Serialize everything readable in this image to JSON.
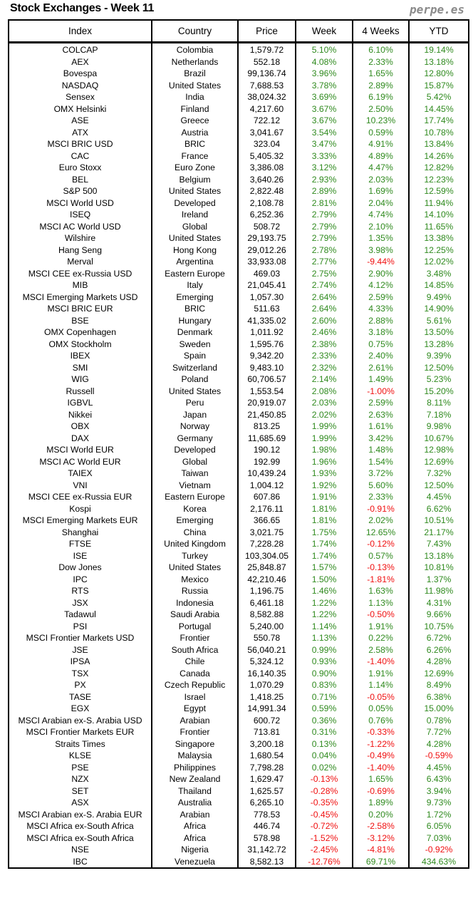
{
  "header": {
    "title": "Stock Exchanges - Week 11",
    "brand": "perpe.es"
  },
  "columns": [
    "Index",
    "Country",
    "Price",
    "Week",
    "4 Weeks",
    "YTD"
  ],
  "colors": {
    "positive": "#2f8a1e",
    "negative": "#f01010"
  },
  "rows": [
    [
      "COLCAP",
      "Colombia",
      "1,579.72",
      "5.10%",
      "6.10%",
      "19.14%"
    ],
    [
      "AEX",
      "Netherlands",
      "552.18",
      "4.08%",
      "2.33%",
      "13.18%"
    ],
    [
      "Bovespa",
      "Brazil",
      "99,136.74",
      "3.96%",
      "1.65%",
      "12.80%"
    ],
    [
      "NASDAQ",
      "United States",
      "7,688.53",
      "3.78%",
      "2.89%",
      "15.87%"
    ],
    [
      "Sensex",
      "India",
      "38,024.32",
      "3.69%",
      "6.19%",
      "5.42%"
    ],
    [
      "OMX Helsinki",
      "Finland",
      "4,217.60",
      "3.67%",
      "2.50%",
      "14.45%"
    ],
    [
      "ASE",
      "Greece",
      "722.12",
      "3.67%",
      "10.23%",
      "17.74%"
    ],
    [
      "ATX",
      "Austria",
      "3,041.67",
      "3.54%",
      "0.59%",
      "10.78%"
    ],
    [
      "MSCI BRIC USD",
      "BRIC",
      "323.04",
      "3.47%",
      "4.91%",
      "13.84%"
    ],
    [
      "CAC",
      "France",
      "5,405.32",
      "3.33%",
      "4.89%",
      "14.26%"
    ],
    [
      "Euro Stoxx",
      "Euro Zone",
      "3,386.08",
      "3.12%",
      "4.47%",
      "12.82%"
    ],
    [
      "BEL",
      "Belgium",
      "3,640.26",
      "2.93%",
      "2.03%",
      "12.23%"
    ],
    [
      "S&P 500",
      "United States",
      "2,822.48",
      "2.89%",
      "1.69%",
      "12.59%"
    ],
    [
      "MSCI World USD",
      "Developed",
      "2,108.78",
      "2.81%",
      "2.04%",
      "11.94%"
    ],
    [
      "ISEQ",
      "Ireland",
      "6,252.36",
      "2.79%",
      "4.74%",
      "14.10%"
    ],
    [
      "MSCI AC World USD",
      "Global",
      "508.72",
      "2.79%",
      "2.10%",
      "11.65%"
    ],
    [
      "Wilshire",
      "United States",
      "29,193.75",
      "2.79%",
      "1.35%",
      "13.38%"
    ],
    [
      "Hang Seng",
      "Hong Kong",
      "29,012.26",
      "2.78%",
      "3.98%",
      "12.25%"
    ],
    [
      "Merval",
      "Argentina",
      "33,933.08",
      "2.77%",
      "-9.44%",
      "12.02%"
    ],
    [
      "MSCI CEE ex-Russia USD",
      "Eastern Europe",
      "469.03",
      "2.75%",
      "2.90%",
      "3.48%"
    ],
    [
      "MIB",
      "Italy",
      "21,045.41",
      "2.74%",
      "4.12%",
      "14.85%"
    ],
    [
      "MSCI Emerging Markets USD",
      "Emerging",
      "1,057.30",
      "2.64%",
      "2.59%",
      "9.49%"
    ],
    [
      "MSCI BRIC EUR",
      "BRIC",
      "511.63",
      "2.64%",
      "4.33%",
      "14.90%"
    ],
    [
      "BSE",
      "Hungary",
      "41,335.02",
      "2.60%",
      "2.88%",
      "5.61%"
    ],
    [
      "OMX Copenhagen",
      "Denmark",
      "1,011.92",
      "2.46%",
      "3.18%",
      "13.50%"
    ],
    [
      "OMX Stockholm",
      "Sweden",
      "1,595.76",
      "2.38%",
      "0.75%",
      "13.28%"
    ],
    [
      "IBEX",
      "Spain",
      "9,342.20",
      "2.33%",
      "2.40%",
      "9.39%"
    ],
    [
      "SMI",
      "Switzerland",
      "9,483.10",
      "2.32%",
      "2.61%",
      "12.50%"
    ],
    [
      "WIG",
      "Poland",
      "60,706.57",
      "2.14%",
      "1.49%",
      "5.23%"
    ],
    [
      "Russell",
      "United States",
      "1,553.54",
      "2.08%",
      "-1.00%",
      "15.20%"
    ],
    [
      "IGBVL",
      "Peru",
      "20,919.07",
      "2.03%",
      "2.59%",
      "8.11%"
    ],
    [
      "Nikkei",
      "Japan",
      "21,450.85",
      "2.02%",
      "2.63%",
      "7.18%"
    ],
    [
      "OBX",
      "Norway",
      "813.25",
      "1.99%",
      "1.61%",
      "9.98%"
    ],
    [
      "DAX",
      "Germany",
      "11,685.69",
      "1.99%",
      "3.42%",
      "10.67%"
    ],
    [
      "MSCI World EUR",
      "Developed",
      "190.12",
      "1.98%",
      "1.48%",
      "12.98%"
    ],
    [
      "MSCI AC World EUR",
      "Global",
      "192.99",
      "1.96%",
      "1.54%",
      "12.69%"
    ],
    [
      "TAIEX",
      "Taiwan",
      "10,439.24",
      "1.93%",
      "3.72%",
      "7.32%"
    ],
    [
      "VNI",
      "Vietnam",
      "1,004.12",
      "1.92%",
      "5.60%",
      "12.50%"
    ],
    [
      "MSCI CEE ex-Russia EUR",
      "Eastern Europe",
      "607.86",
      "1.91%",
      "2.33%",
      "4.45%"
    ],
    [
      "Kospi",
      "Korea",
      "2,176.11",
      "1.81%",
      "-0.91%",
      "6.62%"
    ],
    [
      "MSCI Emerging Markets EUR",
      "Emerging",
      "366.65",
      "1.81%",
      "2.02%",
      "10.51%"
    ],
    [
      "Shanghai",
      "China",
      "3,021.75",
      "1.75%",
      "12.65%",
      "21.17%"
    ],
    [
      "FTSE",
      "United Kingdom",
      "7,228.28",
      "1.74%",
      "-0.12%",
      "7.43%"
    ],
    [
      "ISE",
      "Turkey",
      "103,304.05",
      "1.74%",
      "0.57%",
      "13.18%"
    ],
    [
      "Dow Jones",
      "United States",
      "25,848.87",
      "1.57%",
      "-0.13%",
      "10.81%"
    ],
    [
      "IPC",
      "Mexico",
      "42,210.46",
      "1.50%",
      "-1.81%",
      "1.37%"
    ],
    [
      "RTS",
      "Russia",
      "1,196.75",
      "1.46%",
      "1.63%",
      "11.98%"
    ],
    [
      "JSX",
      "Indonesia",
      "6,461.18",
      "1.22%",
      "1.13%",
      "4.31%"
    ],
    [
      "Tadawul",
      "Saudi Arabia",
      "8,582.88",
      "1.22%",
      "-0.50%",
      "9.66%"
    ],
    [
      "PSI",
      "Portugal",
      "5,240.00",
      "1.14%",
      "1.91%",
      "10.75%"
    ],
    [
      "MSCI Frontier Markets USD",
      "Frontier",
      "550.78",
      "1.13%",
      "0.22%",
      "6.72%"
    ],
    [
      "JSE",
      "South Africa",
      "56,040.21",
      "0.99%",
      "2.58%",
      "6.26%"
    ],
    [
      "IPSA",
      "Chile",
      "5,324.12",
      "0.93%",
      "-1.40%",
      "4.28%"
    ],
    [
      "TSX",
      "Canada",
      "16,140.35",
      "0.90%",
      "1.91%",
      "12.69%"
    ],
    [
      "PX",
      "Czech Republic",
      "1,070.29",
      "0.83%",
      "1.14%",
      "8.49%"
    ],
    [
      "TASE",
      "Israel",
      "1,418.25",
      "0.71%",
      "-0.05%",
      "6.38%"
    ],
    [
      "EGX",
      "Egypt",
      "14,991.34",
      "0.59%",
      "0.05%",
      "15.00%"
    ],
    [
      "MSCI Arabian ex-S. Arabia USD",
      "Arabian",
      "600.72",
      "0.36%",
      "0.76%",
      "0.78%"
    ],
    [
      "MSCI Frontier Markets EUR",
      "Frontier",
      "713.81",
      "0.31%",
      "-0.33%",
      "7.72%"
    ],
    [
      "Straits Times",
      "Singapore",
      "3,200.18",
      "0.13%",
      "-1.22%",
      "4.28%"
    ],
    [
      "KLSE",
      "Malaysia",
      "1,680.54",
      "0.04%",
      "-0.49%",
      "-0.59%"
    ],
    [
      "PSE",
      "Philippines",
      "7,798.28",
      "0.02%",
      "-1.40%",
      "4.45%"
    ],
    [
      "NZX",
      "New Zealand",
      "1,629.47",
      "-0.13%",
      "1.65%",
      "6.43%"
    ],
    [
      "SET",
      "Thailand",
      "1,625.57",
      "-0.28%",
      "-0.69%",
      "3.94%"
    ],
    [
      "ASX",
      "Australia",
      "6,265.10",
      "-0.35%",
      "1.89%",
      "9.73%"
    ],
    [
      "MSCI Arabian ex-S. Arabia EUR",
      "Arabian",
      "778.53",
      "-0.45%",
      "0.20%",
      "1.72%"
    ],
    [
      "MSCI Africa ex-South Africa",
      "Africa",
      "446.74",
      "-0.72%",
      "-2.58%",
      "6.05%"
    ],
    [
      "MSCI Africa ex-South Africa",
      "Africa",
      "578.98",
      "-1.52%",
      "-3.12%",
      "7.03%"
    ],
    [
      "NSE",
      "Nigeria",
      "31,142.72",
      "-2.45%",
      "-4.81%",
      "-0.92%"
    ],
    [
      "IBC",
      "Venezuela",
      "8,582.13",
      "-12.76%",
      "69.71%",
      "434.63%"
    ]
  ]
}
